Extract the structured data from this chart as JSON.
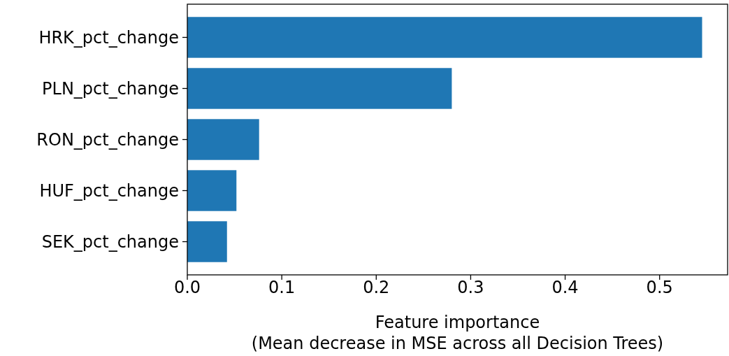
{
  "chart_data": {
    "type": "bar",
    "orientation": "horizontal",
    "categories": [
      "HRK_pct_change",
      "PLN_pct_change",
      "RON_pct_change",
      "HUF_pct_change",
      "SEK_pct_change"
    ],
    "values": [
      0.545,
      0.28,
      0.076,
      0.052,
      0.042
    ],
    "color": "#1f77b4",
    "xlim": [
      0,
      0.572
    ],
    "xticks": [
      {
        "value": 0,
        "label": "0.0"
      },
      0.1,
      0.2,
      0.3,
      0.4,
      0.5
    ],
    "xlabel": "Feature importance\n(Mean decrease in MSE across all Decision Trees)",
    "grid": false
  }
}
